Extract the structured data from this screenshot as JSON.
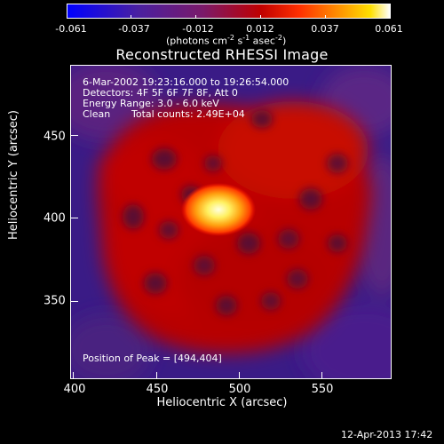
{
  "colorbar": {
    "ticks": [
      "-0.061",
      "-0.037",
      "-0.012",
      "0.012",
      "0.037",
      "0.061"
    ],
    "units_prefix": "(photons cm",
    "units_exp1": "-2",
    "units_mid": " s",
    "units_exp2": "-1",
    "units_mid2": " asec",
    "units_exp3": "-2",
    "units_suffix": ")"
  },
  "title": "Reconstructed RHESSI Image",
  "info": {
    "time_range": "6-Mar-2002 19:23:16.000 to 19:26:54.000",
    "detectors": "Detectors: 4F 5F 6F 7F 8F, Att 0",
    "energy": "Energy Range: 3.0 - 6.0 keV",
    "algorithm": "Clean",
    "counts": "Total counts: 2.49E+04",
    "peak": "Position of Peak = [494,404]"
  },
  "axes": {
    "x_label": "Heliocentric X (arcsec)",
    "y_label": "Heliocentric Y (arcsec)",
    "x_ticks": [
      "400",
      "450",
      "500",
      "550"
    ],
    "y_ticks": [
      "450",
      "400",
      "350"
    ],
    "x_range": [
      397,
      590
    ],
    "y_range": [
      298,
      487
    ]
  },
  "footer": "12-Apr-2013 17:42",
  "colors": {
    "background_min": "#3a1b86",
    "emission_mid": "#c00000",
    "peak": "#ffffe0"
  }
}
